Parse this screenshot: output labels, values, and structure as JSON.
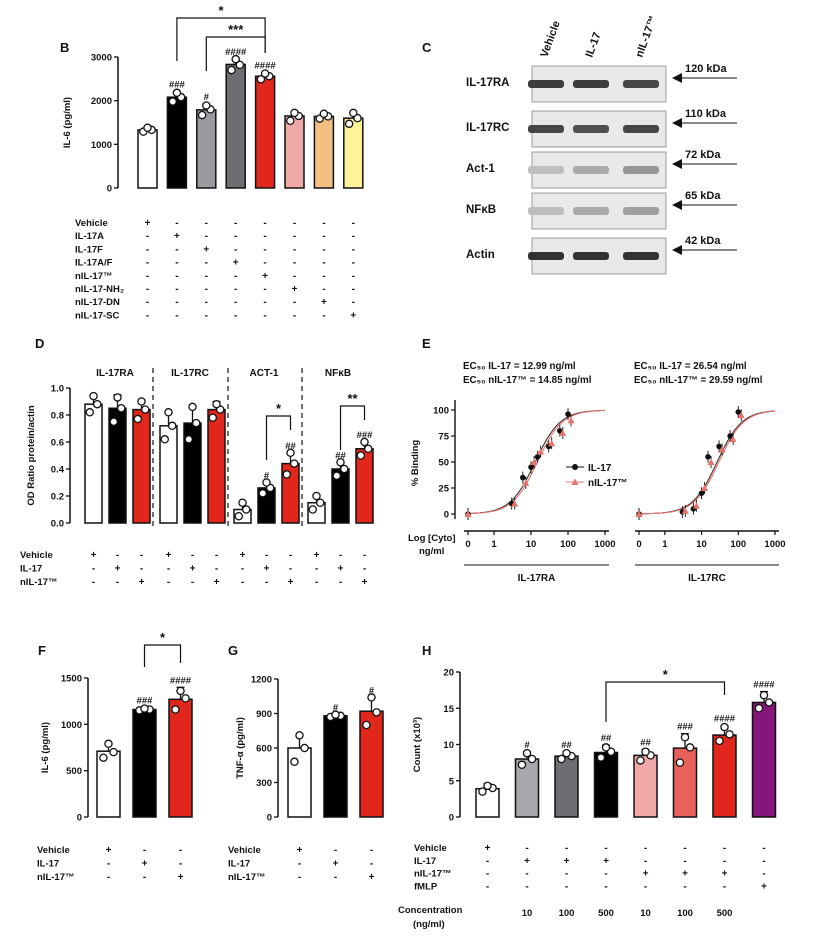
{
  "colors": {
    "white": "#ffffff",
    "black": "#000000",
    "grey": "#9a9aa0",
    "darkgrey": "#6e6e72",
    "red": "#e1261c",
    "pink": "#f0a9a6",
    "peach": "#f5bf84",
    "yellow": "#fff39a",
    "lightred": "#e8625b",
    "purple": "#84157a",
    "lightgrey": "#a8a8ac"
  },
  "chart_data": [
    {
      "panel": "B",
      "type": "bar",
      "ylabel": "IL-6 (pg/ml)",
      "ylim": [
        0,
        3000
      ],
      "yticks": [
        "0",
        "1000",
        "2000",
        "3000"
      ],
      "values": [
        1330,
        2080,
        1790,
        2830,
        2560,
        1650,
        1640,
        1600
      ],
      "errors": [
        60,
        130,
        130,
        120,
        80,
        100,
        70,
        140
      ],
      "points": [
        [
          1290,
          1330,
          1380
        ],
        [
          1980,
          2080,
          2180
        ],
        [
          1670,
          1800,
          1890
        ],
        [
          2700,
          2820,
          2950
        ],
        [
          2490,
          2560,
          2620
        ],
        [
          1540,
          1650,
          1720
        ],
        [
          1590,
          1640,
          1700
        ],
        [
          1470,
          1600,
          1720
        ]
      ],
      "sig": [
        "",
        "###",
        "#",
        "####",
        "####",
        "",
        "",
        ""
      ],
      "brackets": [
        {
          "from": 1,
          "to": 4,
          "label": "*"
        },
        {
          "from": 2,
          "to": 4,
          "label": "***"
        }
      ],
      "conditions": [
        {
          "label": "Vehicle",
          "signs": [
            "+",
            "-",
            "-",
            "-",
            "-",
            "-",
            "-",
            "-"
          ]
        },
        {
          "label": "IL-17A",
          "signs": [
            "-",
            "+",
            "-",
            "-",
            "-",
            "-",
            "-",
            "-"
          ]
        },
        {
          "label": "IL-17F",
          "signs": [
            "-",
            "-",
            "+",
            "-",
            "-",
            "-",
            "-",
            "-"
          ]
        },
        {
          "label": "IL-17A/F",
          "signs": [
            "-",
            "-",
            "-",
            "+",
            "-",
            "-",
            "-",
            "-"
          ]
        },
        {
          "label": "nIL-17™",
          "signs": [
            "-",
            "-",
            "-",
            "-",
            "+",
            "-",
            "-",
            "-"
          ]
        },
        {
          "label": "nIL-17-NH₂",
          "signs": [
            "-",
            "-",
            "-",
            "-",
            "-",
            "+",
            "-",
            "-"
          ]
        },
        {
          "label": "nIL-17-DN",
          "signs": [
            "-",
            "-",
            "-",
            "-",
            "-",
            "-",
            "+",
            "-"
          ]
        },
        {
          "label": "nIL-17-SC",
          "signs": [
            "-",
            "-",
            "-",
            "-",
            "-",
            "-",
            "-",
            "+"
          ]
        }
      ]
    },
    {
      "panel": "C",
      "type": "western_blot",
      "lanes": [
        "Vehicle",
        "IL-17",
        "nIL-17™"
      ],
      "rows": [
        {
          "protein": "IL-17RA",
          "kda": "120 kDa",
          "intensity": [
            0.85,
            0.85,
            0.8
          ]
        },
        {
          "protein": "IL-17RC",
          "kda": "110 kDa",
          "intensity": [
            0.8,
            0.75,
            0.8
          ]
        },
        {
          "protein": "Act-1",
          "kda": "72 kDa",
          "intensity": [
            0.2,
            0.3,
            0.4
          ]
        },
        {
          "protein": "NFκB",
          "kda": "65 kDa",
          "intensity": [
            0.2,
            0.3,
            0.35
          ]
        },
        {
          "protein": "Actin",
          "kda": "42 kDa",
          "intensity": [
            0.9,
            0.9,
            0.9
          ]
        }
      ]
    },
    {
      "panel": "D",
      "type": "bar",
      "ylabel": "OD Ratio protein/actin",
      "ylim": [
        0,
        1.0
      ],
      "yticks": [
        "0.0",
        "0.2",
        "0.4",
        "0.6",
        "0.8",
        "1.0"
      ],
      "groups": [
        {
          "title": "IL-17RA",
          "values": [
            0.88,
            0.85,
            0.84
          ],
          "errors": [
            0.07,
            0.1,
            0.07
          ],
          "points": [
            [
              0.82,
              0.88,
              0.94
            ],
            [
              0.75,
              0.85,
              0.93
            ],
            [
              0.77,
              0.84,
              0.9
            ]
          ],
          "sig": [
            "",
            "",
            ""
          ]
        },
        {
          "title": "IL-17RC",
          "values": [
            0.72,
            0.74,
            0.84
          ],
          "errors": [
            0.1,
            0.12,
            0.06
          ],
          "points": [
            [
              0.62,
              0.72,
              0.82
            ],
            [
              0.62,
              0.74,
              0.86
            ],
            [
              0.78,
              0.84,
              0.88
            ]
          ],
          "sig": [
            "",
            "",
            ""
          ]
        },
        {
          "title": "ACT-1",
          "values": [
            0.1,
            0.26,
            0.44
          ],
          "errors": [
            0.05,
            0.04,
            0.08
          ],
          "points": [
            [
              0.05,
              0.1,
              0.15
            ],
            [
              0.22,
              0.26,
              0.3
            ],
            [
              0.36,
              0.44,
              0.52
            ]
          ],
          "sig": [
            "",
            "#",
            "##"
          ],
          "bracket": "*"
        },
        {
          "title": "NFκB",
          "values": [
            0.15,
            0.4,
            0.55
          ],
          "errors": [
            0.05,
            0.05,
            0.05
          ],
          "points": [
            [
              0.1,
              0.15,
              0.2
            ],
            [
              0.35,
              0.4,
              0.45
            ],
            [
              0.5,
              0.55,
              0.6
            ]
          ],
          "sig": [
            "",
            "##",
            "###"
          ],
          "bracket": "**"
        }
      ],
      "conditions": [
        {
          "label": "Vehicle",
          "signs": [
            "+",
            "-",
            "-"
          ]
        },
        {
          "label": "IL-17",
          "signs": [
            "-",
            "+",
            "-"
          ]
        },
        {
          "label": "nIL-17™",
          "signs": [
            "-",
            "-",
            "+"
          ]
        }
      ]
    },
    {
      "panel": "E",
      "type": "line",
      "ylabel": "% Binding",
      "xlabel": "Log [Cyto]",
      "xunit": "ng/ml",
      "yticks": [
        "0",
        "25",
        "50",
        "75",
        "100"
      ],
      "xticks": [
        "0",
        "1",
        "10",
        "100",
        "1000"
      ],
      "legend": [
        "IL-17",
        "nIL-17™"
      ],
      "subplots": [
        {
          "title": "IL-17RA",
          "ec50_a": "EC₅₀ IL-17 = 12.99 ng/ml",
          "ec50_b": "EC₅₀ nIL-17™ = 14.85 ng/ml",
          "x": [
            0,
            3,
            6,
            10,
            15,
            30,
            60,
            100
          ],
          "series": [
            {
              "name": "IL-17",
              "y": [
                0,
                10,
                35,
                45,
                55,
                65,
                80,
                96
              ]
            },
            {
              "name": "nIL-17™",
              "y": [
                0,
                10,
                30,
                50,
                60,
                68,
                78,
                90
              ]
            }
          ],
          "ec50": [
            12.99,
            14.85
          ]
        },
        {
          "title": "IL-17RC",
          "ec50_a": "EC₅₀ IL-17 = 26.54 ng/ml",
          "ec50_b": "EC₅₀ nIL-17™ = 29.59 ng/ml",
          "x": [
            0,
            3,
            6,
            10,
            15,
            30,
            60,
            100
          ],
          "series": [
            {
              "name": "IL-17",
              "y": [
                0,
                2,
                5,
                20,
                55,
                65,
                75,
                98
              ]
            },
            {
              "name": "nIL-17™",
              "y": [
                0,
                3,
                8,
                25,
                50,
                62,
                72,
                95
              ]
            }
          ],
          "ec50": [
            26.54,
            29.59
          ]
        }
      ]
    },
    {
      "panel": "F",
      "type": "bar",
      "ylabel": "IL-6 (pg/ml)",
      "ylim": [
        0,
        1500
      ],
      "yticks": [
        "0",
        "500",
        "1000",
        "1500"
      ],
      "values": [
        710,
        1160,
        1270
      ],
      "errors": [
        90,
        20,
        130
      ],
      "points": [
        [
          640,
          700,
          790
        ],
        [
          1150,
          1160,
          1170
        ],
        [
          1160,
          1280,
          1360
        ]
      ],
      "sig": [
        "",
        "###",
        "####"
      ],
      "bracket": "*",
      "conditions": [
        {
          "label": "Vehicle",
          "signs": [
            "+",
            "-",
            "-"
          ]
        },
        {
          "label": "IL-17",
          "signs": [
            "-",
            "+",
            "-"
          ]
        },
        {
          "label": "nIL-17™",
          "signs": [
            "-",
            "-",
            "+"
          ]
        }
      ]
    },
    {
      "panel": "G",
      "type": "bar",
      "ylabel": "TNF-α (pg/ml)",
      "ylim": [
        0,
        1200
      ],
      "yticks": [
        "0",
        "300",
        "600",
        "900",
        "1200"
      ],
      "values": [
        600,
        880,
        920
      ],
      "errors": [
        120,
        10,
        120
      ],
      "points": [
        [
          480,
          600,
          710
        ],
        [
          870,
          880,
          890
        ],
        [
          800,
          910,
          1040
        ]
      ],
      "sig": [
        "",
        "#",
        "#"
      ],
      "conditions": [
        {
          "label": "Vehicle",
          "signs": [
            "+",
            "-",
            "-"
          ]
        },
        {
          "label": "IL-17",
          "signs": [
            "-",
            "+",
            "-"
          ]
        },
        {
          "label": "nIL-17™",
          "signs": [
            "-",
            "-",
            "+"
          ]
        }
      ]
    },
    {
      "panel": "H",
      "type": "bar",
      "ylabel": "Count (x10³)",
      "ylim": [
        0,
        20
      ],
      "yticks": [
        "0",
        "5",
        "10",
        "15",
        "20"
      ],
      "values": [
        3.9,
        8.0,
        8.4,
        8.9,
        8.5,
        9.5,
        11.3,
        15.8
      ],
      "errors": [
        0.7,
        1.0,
        0.6,
        1.0,
        0.8,
        2.0,
        1.3,
        1.5
      ],
      "points": [
        [
          3.5,
          4.0,
          4.3
        ],
        [
          7.2,
          8.0,
          8.8
        ],
        [
          8.0,
          8.4,
          8.8
        ],
        [
          8.2,
          9.0,
          9.6
        ],
        [
          7.8,
          8.5,
          9.0
        ],
        [
          7.5,
          9.6,
          11.0
        ],
        [
          10.5,
          11.4,
          12.4
        ],
        [
          15.0,
          15.8,
          16.8
        ]
      ],
      "sig": [
        "",
        "#",
        "##",
        "##",
        "##",
        "###",
        "####",
        "####"
      ],
      "brackets": [
        {
          "from": 3,
          "to": 6,
          "label": "*"
        }
      ],
      "conditions": [
        {
          "label": "Vehicle",
          "signs": [
            "+",
            "-",
            "-",
            "-",
            "-",
            "-",
            "-",
            "-"
          ]
        },
        {
          "label": "IL-17",
          "signs": [
            "-",
            "+",
            "+",
            "+",
            "-",
            "-",
            "-",
            "-"
          ]
        },
        {
          "label": "nIL-17™",
          "signs": [
            "-",
            "-",
            "-",
            "-",
            "+",
            "+",
            "+",
            "-"
          ]
        },
        {
          "label": "fMLP",
          "signs": [
            "-",
            "-",
            "-",
            "-",
            "-",
            "-",
            "-",
            "+"
          ]
        }
      ],
      "concentration_label": "Concentration",
      "concentration_unit": "(ng/ml)",
      "concentrations": [
        "",
        "10",
        "100",
        "500",
        "10",
        "100",
        "500",
        ""
      ]
    }
  ]
}
